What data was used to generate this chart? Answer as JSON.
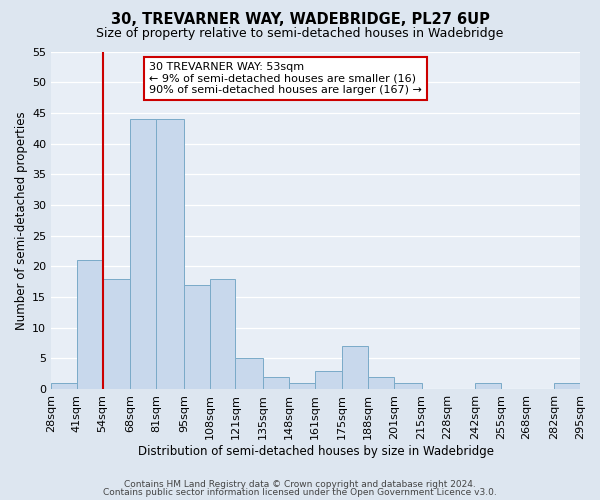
{
  "title": "30, TREVARNER WAY, WADEBRIDGE, PL27 6UP",
  "subtitle": "Size of property relative to semi-detached houses in Wadebridge",
  "xlabel": "Distribution of semi-detached houses by size in Wadebridge",
  "ylabel": "Number of semi-detached properties",
  "bin_labels": [
    "28sqm",
    "41sqm",
    "54sqm",
    "68sqm",
    "81sqm",
    "95sqm",
    "108sqm",
    "121sqm",
    "135sqm",
    "148sqm",
    "161sqm",
    "175sqm",
    "188sqm",
    "201sqm",
    "215sqm",
    "228sqm",
    "242sqm",
    "255sqm",
    "268sqm",
    "282sqm",
    "295sqm"
  ],
  "bar_values": [
    1,
    21,
    18,
    44,
    44,
    17,
    18,
    5,
    2,
    1,
    3,
    7,
    2,
    1,
    0,
    0,
    1,
    0,
    0,
    1
  ],
  "bin_edges": [
    28,
    41,
    54,
    68,
    81,
    95,
    108,
    121,
    135,
    148,
    161,
    175,
    188,
    201,
    215,
    228,
    242,
    255,
    268,
    282,
    295
  ],
  "bar_color": "#c8d8ec",
  "bar_edge_color": "#7aaac8",
  "vline_x": 54,
  "vline_color": "#cc0000",
  "ylim": [
    0,
    55
  ],
  "yticks": [
    0,
    5,
    10,
    15,
    20,
    25,
    30,
    35,
    40,
    45,
    50,
    55
  ],
  "annotation_title": "30 TREVARNER WAY: 53sqm",
  "annotation_line1": "← 9% of semi-detached houses are smaller (16)",
  "annotation_line2": "90% of semi-detached houses are larger (167) →",
  "annotation_box_color": "#ffffff",
  "annotation_box_edge": "#cc0000",
  "footer_line1": "Contains HM Land Registry data © Crown copyright and database right 2024.",
  "footer_line2": "Contains public sector information licensed under the Open Government Licence v3.0.",
  "bg_color": "#dde6f0",
  "plot_bg_color": "#e8eef6",
  "grid_color": "#ffffff",
  "title_fontsize": 10.5,
  "subtitle_fontsize": 9,
  "axis_label_fontsize": 8.5,
  "tick_fontsize": 8,
  "annotation_fontsize": 8,
  "footer_fontsize": 6.5
}
